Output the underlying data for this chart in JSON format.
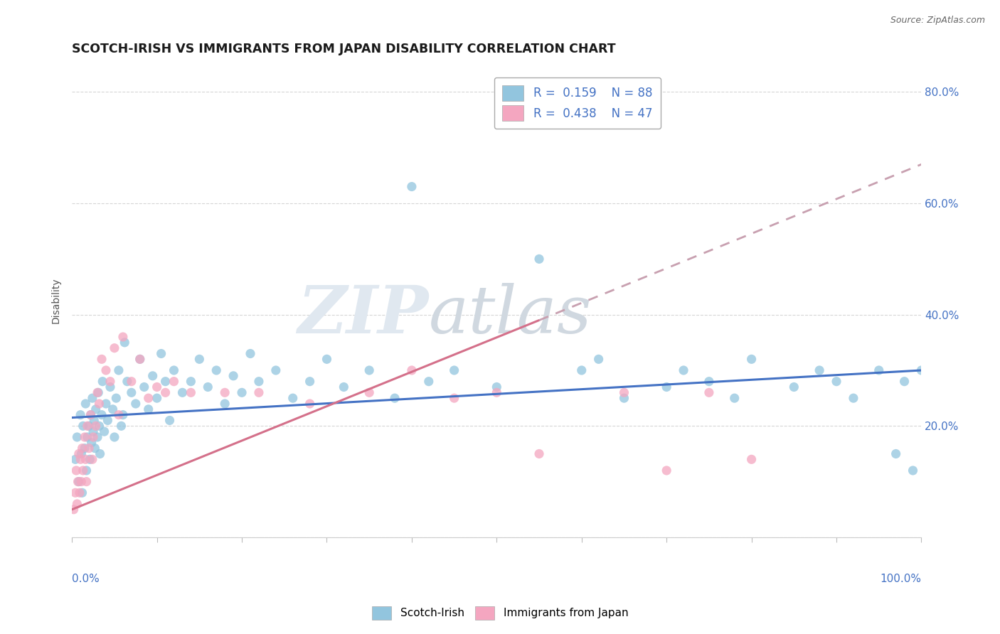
{
  "title": "SCOTCH-IRISH VS IMMIGRANTS FROM JAPAN DISABILITY CORRELATION CHART",
  "source": "Source: ZipAtlas.com",
  "ylabel": "Disability",
  "legend_label1": "Scotch-Irish",
  "legend_label2": "Immigrants from Japan",
  "r1": "0.159",
  "n1": "88",
  "r2": "0.438",
  "n2": "47",
  "color_blue": "#92C5DE",
  "color_pink": "#F4A6C0",
  "color_blue_line": "#4472C4",
  "color_pink_line": "#D4708A",
  "color_pink_dash": "#C8A0B0",
  "background_color": "#FFFFFF",
  "grid_color": "#CCCCCC",
  "xmin": 0.0,
  "xmax": 100.0,
  "ymin": 0.0,
  "ymax": 85.0,
  "yticks": [
    0,
    20,
    40,
    60,
    80
  ],
  "ytick_labels": [
    "",
    "20.0%",
    "40.0%",
    "60.0%",
    "80.0%"
  ],
  "scotch_irish_x": [
    0.4,
    0.6,
    0.8,
    1.0,
    1.1,
    1.2,
    1.3,
    1.5,
    1.6,
    1.7,
    1.8,
    2.0,
    2.1,
    2.2,
    2.3,
    2.4,
    2.5,
    2.6,
    2.7,
    2.8,
    3.0,
    3.1,
    3.2,
    3.3,
    3.5,
    3.6,
    3.8,
    4.0,
    4.2,
    4.5,
    4.8,
    5.0,
    5.2,
    5.5,
    5.8,
    6.0,
    6.2,
    6.5,
    7.0,
    7.5,
    8.0,
    8.5,
    9.0,
    9.5,
    10.0,
    10.5,
    11.0,
    11.5,
    12.0,
    13.0,
    14.0,
    15.0,
    16.0,
    17.0,
    18.0,
    19.0,
    20.0,
    21.0,
    22.0,
    24.0,
    26.0,
    28.0,
    30.0,
    32.0,
    35.0,
    38.0,
    40.0,
    42.0,
    45.0,
    50.0,
    55.0,
    60.0,
    62.0,
    65.0,
    70.0,
    72.0,
    75.0,
    78.0,
    80.0,
    85.0,
    88.0,
    90.0,
    92.0,
    95.0,
    97.0,
    98.0,
    99.0,
    100.0
  ],
  "scotch_irish_y": [
    14.0,
    18.0,
    10.0,
    22.0,
    15.0,
    8.0,
    20.0,
    16.0,
    24.0,
    12.0,
    18.0,
    20.0,
    14.0,
    22.0,
    17.0,
    25.0,
    19.0,
    21.0,
    16.0,
    23.0,
    18.0,
    26.0,
    20.0,
    15.0,
    22.0,
    28.0,
    19.0,
    24.0,
    21.0,
    27.0,
    23.0,
    18.0,
    25.0,
    30.0,
    20.0,
    22.0,
    35.0,
    28.0,
    26.0,
    24.0,
    32.0,
    27.0,
    23.0,
    29.0,
    25.0,
    33.0,
    28.0,
    21.0,
    30.0,
    26.0,
    28.0,
    32.0,
    27.0,
    30.0,
    24.0,
    29.0,
    26.0,
    33.0,
    28.0,
    30.0,
    25.0,
    28.0,
    32.0,
    27.0,
    30.0,
    25.0,
    63.0,
    28.0,
    30.0,
    27.0,
    50.0,
    30.0,
    32.0,
    25.0,
    27.0,
    30.0,
    28.0,
    25.0,
    32.0,
    27.0,
    30.0,
    28.0,
    25.0,
    30.0,
    15.0,
    28.0,
    12.0,
    30.0
  ],
  "japan_x": [
    0.2,
    0.4,
    0.5,
    0.6,
    0.7,
    0.8,
    0.9,
    1.0,
    1.1,
    1.2,
    1.3,
    1.5,
    1.6,
    1.7,
    1.8,
    2.0,
    2.2,
    2.4,
    2.5,
    2.8,
    3.0,
    3.2,
    3.5,
    4.0,
    4.5,
    5.0,
    5.5,
    6.0,
    7.0,
    8.0,
    9.0,
    10.0,
    11.0,
    12.0,
    14.0,
    18.0,
    22.0,
    28.0,
    35.0,
    40.0,
    45.0,
    50.0,
    55.0,
    65.0,
    70.0,
    75.0,
    80.0
  ],
  "japan_y": [
    5.0,
    8.0,
    12.0,
    6.0,
    10.0,
    15.0,
    8.0,
    14.0,
    10.0,
    16.0,
    12.0,
    18.0,
    14.0,
    10.0,
    20.0,
    16.0,
    22.0,
    14.0,
    18.0,
    20.0,
    26.0,
    24.0,
    32.0,
    30.0,
    28.0,
    34.0,
    22.0,
    36.0,
    28.0,
    32.0,
    25.0,
    27.0,
    26.0,
    28.0,
    26.0,
    26.0,
    26.0,
    24.0,
    26.0,
    30.0,
    25.0,
    26.0,
    15.0,
    26.0,
    12.0,
    26.0,
    14.0
  ],
  "blue_line_x0": 0.0,
  "blue_line_x1": 100.0,
  "blue_line_y0": 21.5,
  "blue_line_y1": 30.0,
  "pink_line_x0": 0.0,
  "pink_line_x1": 55.0,
  "pink_line_y0": 5.0,
  "pink_line_y1": 39.0,
  "pink_dash_x0": 55.0,
  "pink_dash_x1": 100.0,
  "pink_dash_y0": 39.0,
  "pink_dash_y1": 67.0
}
